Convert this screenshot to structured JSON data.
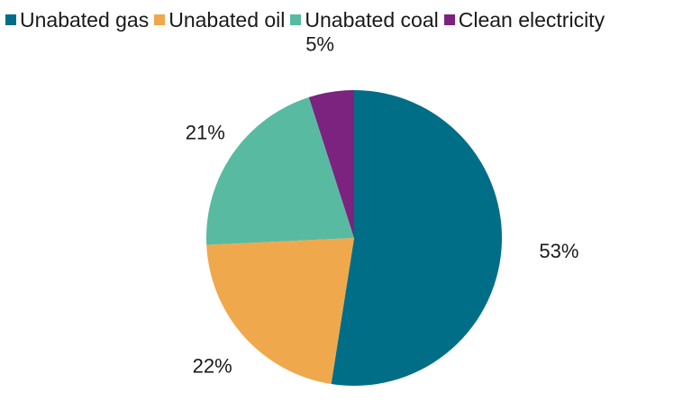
{
  "chart_data": {
    "type": "pie",
    "title": "",
    "categories": [
      "Unabated gas",
      "Unabated oil",
      "Unabated coal",
      "Clean electricity"
    ],
    "values": [
      53,
      22,
      21,
      5
    ],
    "value_labels": [
      "53%",
      "22%",
      "21%",
      "5%"
    ],
    "colors": [
      "#006e87",
      "#f0a84c",
      "#58bba1",
      "#7b237f"
    ],
    "start_angle": "12 o'clock",
    "direction": "clockwise",
    "legend": {
      "placement": "top",
      "entries": [
        "Unabated gas",
        "Unabated oil",
        "Unabated coal",
        "Clean electricity"
      ]
    }
  }
}
